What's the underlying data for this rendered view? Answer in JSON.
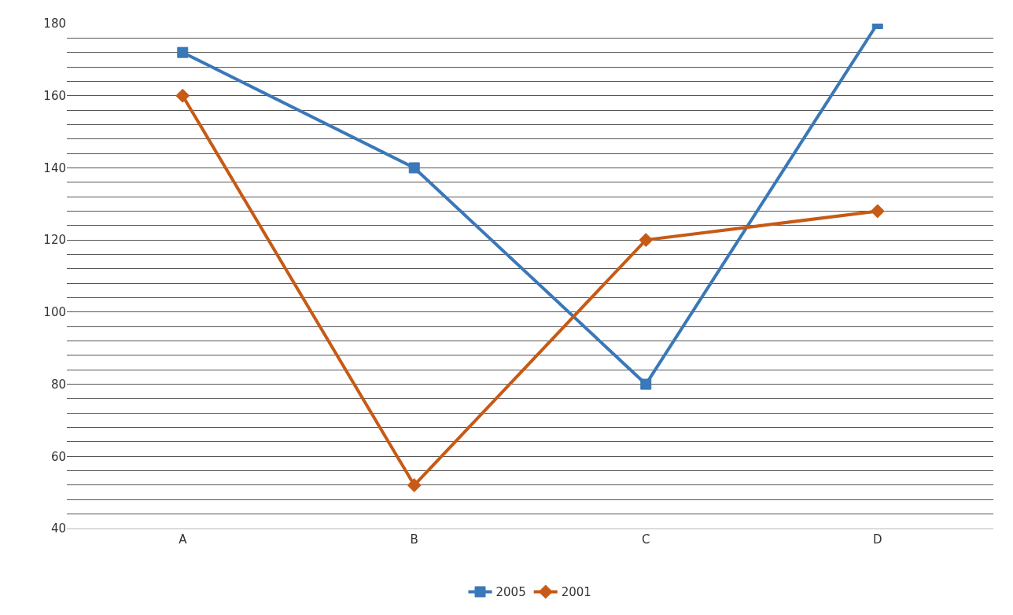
{
  "chart_data": {
    "type": "line",
    "categories": [
      "A",
      "B",
      "C",
      "D"
    ],
    "series": [
      {
        "name": "2005",
        "color": "#3a78b8",
        "values": [
          172,
          140,
          80,
          180
        ],
        "marker": "square"
      },
      {
        "name": "2001",
        "color": "#c65a16",
        "values": [
          160,
          52,
          120,
          128
        ],
        "marker": "diamond"
      }
    ],
    "ylim": [
      40,
      180
    ],
    "yticks": [
      40,
      {
        "value": 44,
        "label": null
      },
      {
        "value": 48,
        "label": null
      },
      {
        "value": 52,
        "label": null
      },
      {
        "value": 56,
        "label": null
      },
      60,
      {
        "value": 64,
        "label": null
      },
      {
        "value": 68,
        "label": null
      },
      {
        "value": 72,
        "label": null
      },
      {
        "value": 76,
        "label": null
      },
      80,
      {
        "value": 84,
        "label": null
      },
      {
        "value": 88,
        "label": null
      },
      {
        "value": 92,
        "label": null
      },
      {
        "value": 96,
        "label": null
      },
      100,
      {
        "value": 104,
        "label": null
      },
      {
        "value": 108,
        "label": null
      },
      {
        "value": 112,
        "label": null
      },
      {
        "value": 116,
        "label": null
      },
      120,
      {
        "value": 124,
        "label": null
      },
      {
        "value": 128,
        "label": null
      },
      {
        "value": 132,
        "label": null
      },
      {
        "value": 136,
        "label": null
      },
      140,
      {
        "value": 144,
        "label": null
      },
      {
        "value": 148,
        "label": null
      },
      {
        "value": 152,
        "label": null
      },
      {
        "value": 156,
        "label": null
      },
      160,
      {
        "value": 164,
        "label": null
      },
      {
        "value": 168,
        "label": null
      },
      {
        "value": 172,
        "label": null
      },
      {
        "value": 176,
        "label": null
      },
      180
    ],
    "grid": "y",
    "legend": "bottom",
    "line_style": "solid"
  }
}
